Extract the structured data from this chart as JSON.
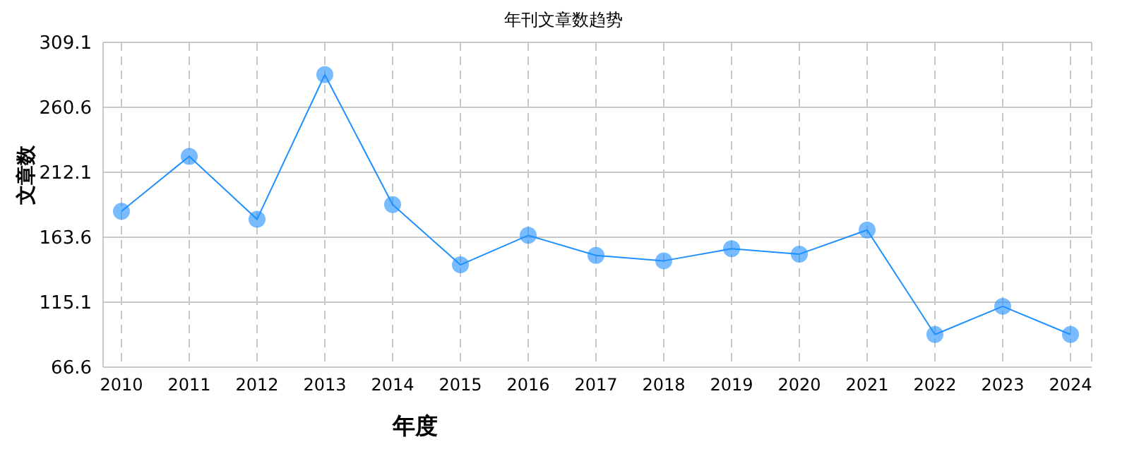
{
  "chart_data": {
    "type": "line",
    "title": "年刊文章数趋势",
    "xlabel": "年度",
    "ylabel": "文章数",
    "categories": [
      "2010",
      "2011",
      "2012",
      "2013",
      "2014",
      "2015",
      "2016",
      "2017",
      "2018",
      "2019",
      "2020",
      "2021",
      "2022",
      "2023",
      "2024"
    ],
    "series": [
      {
        "color": "#1e90ff",
        "values": [
          183,
          224,
          177,
          285,
          188,
          143,
          165,
          150,
          146,
          155,
          151,
          169,
          91,
          112,
          91
        ]
      }
    ],
    "ylim": [
      66.6,
      309.1
    ],
    "yticks": [
      66.6,
      115.1,
      163.6,
      212.1,
      260.6,
      309.1
    ],
    "grid": true,
    "marker": "circle",
    "line_style": "solid",
    "legend": false
  }
}
